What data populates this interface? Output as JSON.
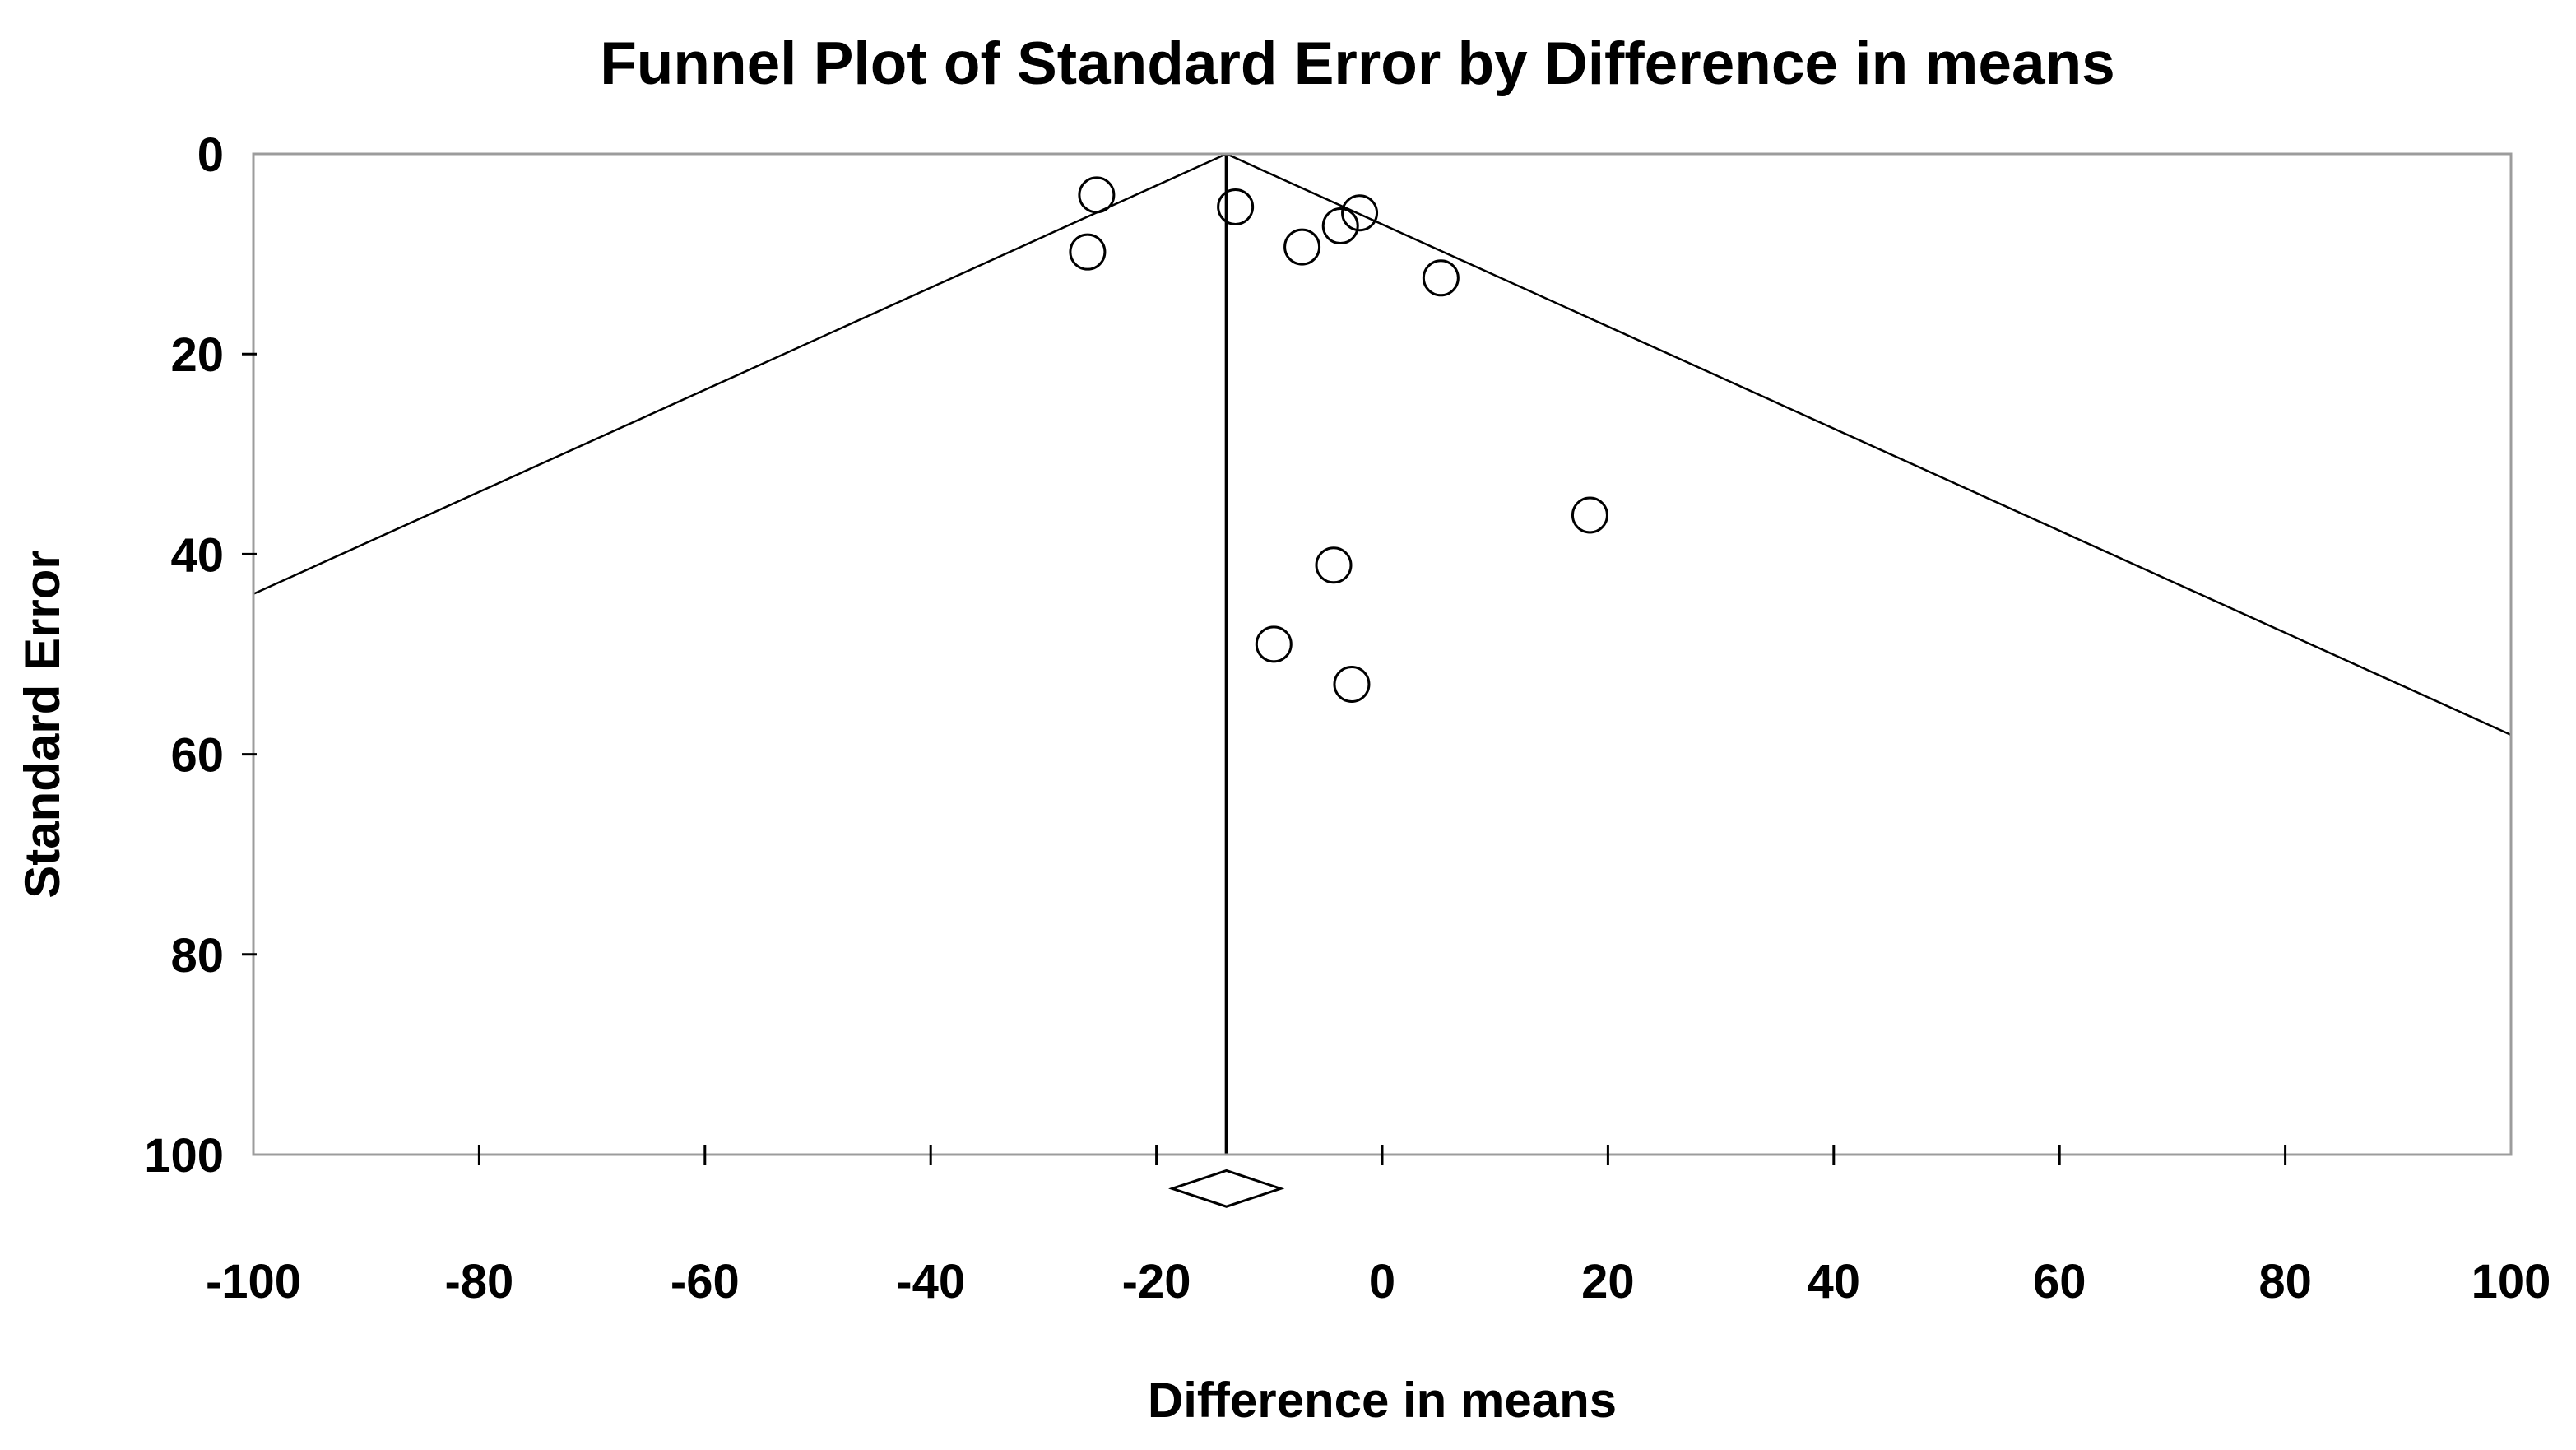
{
  "figure": {
    "background_color": "#ffffff",
    "border_color": "#9c9c9c",
    "line_color": "#000000",
    "text_color": "#000000"
  },
  "chart_data": {
    "type": "scatter",
    "subtype": "funnel-plot",
    "title": "Funnel Plot of Standard Error by Difference in means",
    "xlabel": "Difference in means",
    "ylabel": "Standard Error",
    "xlim": [
      -100,
      100
    ],
    "se_lim": [
      0,
      100
    ],
    "y_axis_inverted": true,
    "grid": false,
    "legend": false,
    "x_ticks": [
      -100,
      -80,
      -60,
      -40,
      -20,
      0,
      20,
      40,
      60,
      80,
      100
    ],
    "y_ticks": [
      0,
      20,
      40,
      60,
      80,
      100
    ],
    "mean_difference": -13.8,
    "ci_multiplier": 1.96,
    "points": [
      {
        "x": -25.3,
        "se": 4.1
      },
      {
        "x": -26.1,
        "se": 9.8
      },
      {
        "x": -13.0,
        "se": 5.3
      },
      {
        "x": -7.1,
        "se": 9.3
      },
      {
        "x": -3.7,
        "se": 7.2
      },
      {
        "x": -2.0,
        "se": 5.9
      },
      {
        "x": 5.2,
        "se": 12.4
      },
      {
        "x": 18.4,
        "se": 36.1
      },
      {
        "x": -4.3,
        "se": 41.1
      },
      {
        "x": -9.6,
        "se": 49.0
      },
      {
        "x": -2.7,
        "se": 53.0
      }
    ],
    "diamond": {
      "center_x": -13.8,
      "half_width_x": 4.8,
      "center_se": 103.4,
      "half_height_se": 1.8
    }
  }
}
